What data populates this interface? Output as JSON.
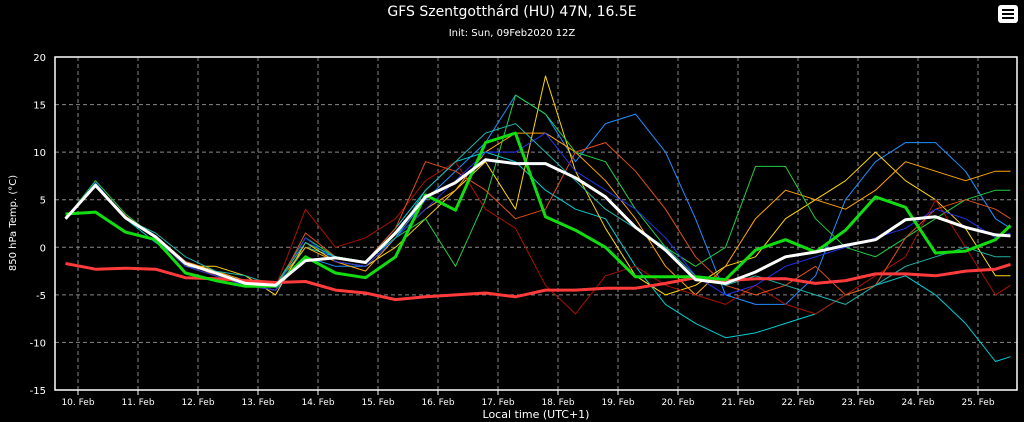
{
  "header": {
    "title": "GFS Szentgotthárd (HU) 47N, 16.5E",
    "subtitle": "Init: Sun, 09Feb2020 12Z",
    "menu_icon": "hamburger-menu-icon"
  },
  "chart_data": {
    "type": "line",
    "title": "GFS Szentgotthárd (HU) 47N, 16.5E",
    "subtitle": "Init: Sun, 09Feb2020 12Z",
    "xlabel": "Local time (UTC+1)",
    "ylabel": "850 hPa Temp. (°C)",
    "ylim": [
      -15,
      20
    ],
    "yticks": [
      20,
      15,
      10,
      5,
      0,
      -5,
      -10,
      -15
    ],
    "xticks": [
      "10. Feb",
      "11. Feb",
      "12. Feb",
      "13. Feb",
      "14. Feb",
      "15. Feb",
      "16. Feb",
      "17. Feb",
      "18. Feb",
      "19. Feb",
      "20. Feb",
      "21. Feb",
      "22. Feb",
      "23. Feb",
      "24. Feb",
      "25. Feb"
    ],
    "grid": true,
    "background": "#000000",
    "x": [
      "09 Feb 19:00",
      "10 Feb 07:00",
      "10 Feb 19:00",
      "11 Feb 07:00",
      "11 Feb 19:00",
      "12 Feb 07:00",
      "12 Feb 19:00",
      "13 Feb 07:00",
      "13 Feb 19:00",
      "14 Feb 07:00",
      "14 Feb 19:00",
      "15 Feb 07:00",
      "15 Feb 19:00",
      "16 Feb 07:00",
      "16 Feb 19:00",
      "17 Feb 07:00",
      "17 Feb 19:00",
      "18 Feb 07:00",
      "18 Feb 19:00",
      "19 Feb 07:00",
      "19 Feb 19:00",
      "20 Feb 07:00",
      "20 Feb 19:00",
      "21 Feb 07:00",
      "21 Feb 19:00",
      "22 Feb 07:00",
      "22 Feb 19:00",
      "23 Feb 07:00",
      "23 Feb 19:00",
      "24 Feb 07:00",
      "24 Feb 19:00",
      "25 Feb 07:00",
      "25 Feb 13:00"
    ],
    "members": [
      {
        "color": "#1E90FF",
        "values": [
          3,
          6.5,
          3,
          1,
          -2,
          -2.5,
          -4,
          -4.5,
          -1,
          -2,
          -2,
          1,
          5,
          8,
          11,
          16,
          14,
          9,
          13,
          14,
          10,
          3,
          -5,
          -6,
          -6,
          -3,
          5,
          9,
          11,
          11,
          8,
          3,
          2
        ]
      },
      {
        "color": "#00CED1",
        "values": [
          3,
          6.8,
          3,
          0.5,
          -1.5,
          -3,
          -4,
          -4.5,
          0,
          -1,
          -1.5,
          2,
          6,
          9,
          10,
          9,
          6,
          4,
          3,
          -2,
          -6,
          -8,
          -9.5,
          -9,
          -8,
          -7,
          -5,
          -4,
          -3,
          -5,
          -8,
          -12,
          -11.5
        ]
      },
      {
        "color": "#FFD700",
        "values": [
          3,
          6.6,
          3.2,
          1,
          -2,
          -2,
          -3,
          -5,
          0.5,
          -1.5,
          -2,
          0,
          3,
          6,
          9,
          4,
          18,
          8,
          2,
          -3,
          -5,
          -4,
          -2,
          -1,
          3,
          5,
          7,
          10,
          7,
          5,
          2,
          -3,
          -3
        ]
      },
      {
        "color": "#FFA500",
        "values": [
          3,
          6.7,
          3,
          1.2,
          -1.5,
          -2.5,
          -3.5,
          -4,
          0,
          -1.5,
          -2.5,
          1,
          4,
          6,
          10,
          12,
          12,
          10,
          7,
          3,
          -2,
          -5,
          -2,
          3,
          6,
          5,
          4,
          6,
          9,
          8,
          7,
          8,
          8
        ]
      },
      {
        "color": "#22CC44",
        "values": [
          3,
          7,
          3.5,
          1,
          -2,
          -3,
          -3.5,
          -4,
          1,
          -1,
          -1.5,
          1,
          3,
          -2,
          5,
          16,
          14,
          10,
          9,
          4,
          0,
          -2,
          0,
          8.5,
          8.5,
          3,
          0,
          -1,
          1,
          3,
          5,
          6,
          6
        ]
      },
      {
        "color": "#AA1100",
        "values": [
          3,
          6.5,
          3,
          1,
          -2,
          -3,
          -3.8,
          -4.2,
          4,
          0,
          1,
          3,
          7,
          9,
          4,
          2,
          -4,
          -7,
          -3,
          -2,
          -4,
          -5,
          -6,
          -4,
          -6,
          -7,
          -5,
          -3,
          -1,
          5,
          0,
          -5,
          -4
        ]
      },
      {
        "color": "#E0501A",
        "values": [
          3,
          6.6,
          3.3,
          1,
          -1.5,
          -3,
          -4,
          -4.5,
          1.5,
          -1,
          -1.5,
          2,
          9,
          8,
          6,
          3,
          4,
          10,
          11,
          8,
          4,
          -1,
          -4,
          -5,
          -4,
          -2,
          -5,
          -4,
          1,
          4,
          5,
          4,
          3
        ]
      },
      {
        "color": "#2233EE",
        "values": [
          3,
          6.8,
          3,
          1,
          -2,
          -3,
          -4,
          -4.5,
          1,
          -1.5,
          -2,
          1,
          4,
          7,
          10,
          10,
          12,
          8,
          6,
          4,
          1,
          -3,
          -5,
          -4,
          -2,
          -1,
          0,
          1,
          2,
          4,
          3,
          1,
          1.5
        ]
      },
      {
        "color": "#20B2AA",
        "values": [
          3,
          6.7,
          3,
          1.5,
          -1,
          -2.5,
          -3,
          -4,
          0.5,
          -1,
          -1.5,
          1,
          6,
          9,
          12,
          13,
          10,
          7,
          4,
          2,
          0,
          -3,
          -4,
          -3,
          -4,
          -5,
          -6,
          -4,
          -2,
          -1,
          0,
          -1,
          -1
        ]
      }
    ],
    "red_line": {
      "color": "#FF3B3B",
      "values": [
        -1.7,
        -2.3,
        -2.2,
        -2.3,
        -3.2,
        -3.3,
        -3.5,
        -3.7,
        -3.6,
        -4.5,
        -4.8,
        -5.5,
        -5.2,
        -5,
        -4.8,
        -5.2,
        -4.5,
        -4.5,
        -4.3,
        -4.3,
        -3.8,
        -3.2,
        -3.5,
        -3.3,
        -3.3,
        -3.8,
        -3.5,
        -2.8,
        -2.8,
        -3,
        -2.5,
        -2.3,
        -1.8
      ]
    },
    "control": {
      "color": "#11DD11",
      "values": [
        3.5,
        3.7,
        1.6,
        0.8,
        -2.7,
        -3.5,
        -4.1,
        -4.1,
        -1,
        -2.7,
        -3.2,
        -1,
        5.5,
        3.9,
        11,
        12,
        3.2,
        1.8,
        0,
        -3.1,
        -3.1,
        -3.1,
        -3.4,
        -0.3,
        0.8,
        -0.5,
        1.8,
        5.3,
        4.2,
        -0.6,
        -0.4,
        0.8,
        2.3
      ]
    },
    "mean": {
      "color": "#FFFFFF",
      "values": [
        3,
        6.5,
        3.1,
        1.1,
        -1.7,
        -2.7,
        -3.8,
        -4,
        -1.4,
        -1.1,
        -1.6,
        1.5,
        5.3,
        6.8,
        9.2,
        8.8,
        8.8,
        7.3,
        5.3,
        2.1,
        -0.3,
        -3.4,
        -3.8,
        -2.6,
        -1,
        -0.5,
        0.2,
        0.8,
        2.9,
        3.2,
        2.1,
        1.3,
        1.2
      ]
    }
  }
}
